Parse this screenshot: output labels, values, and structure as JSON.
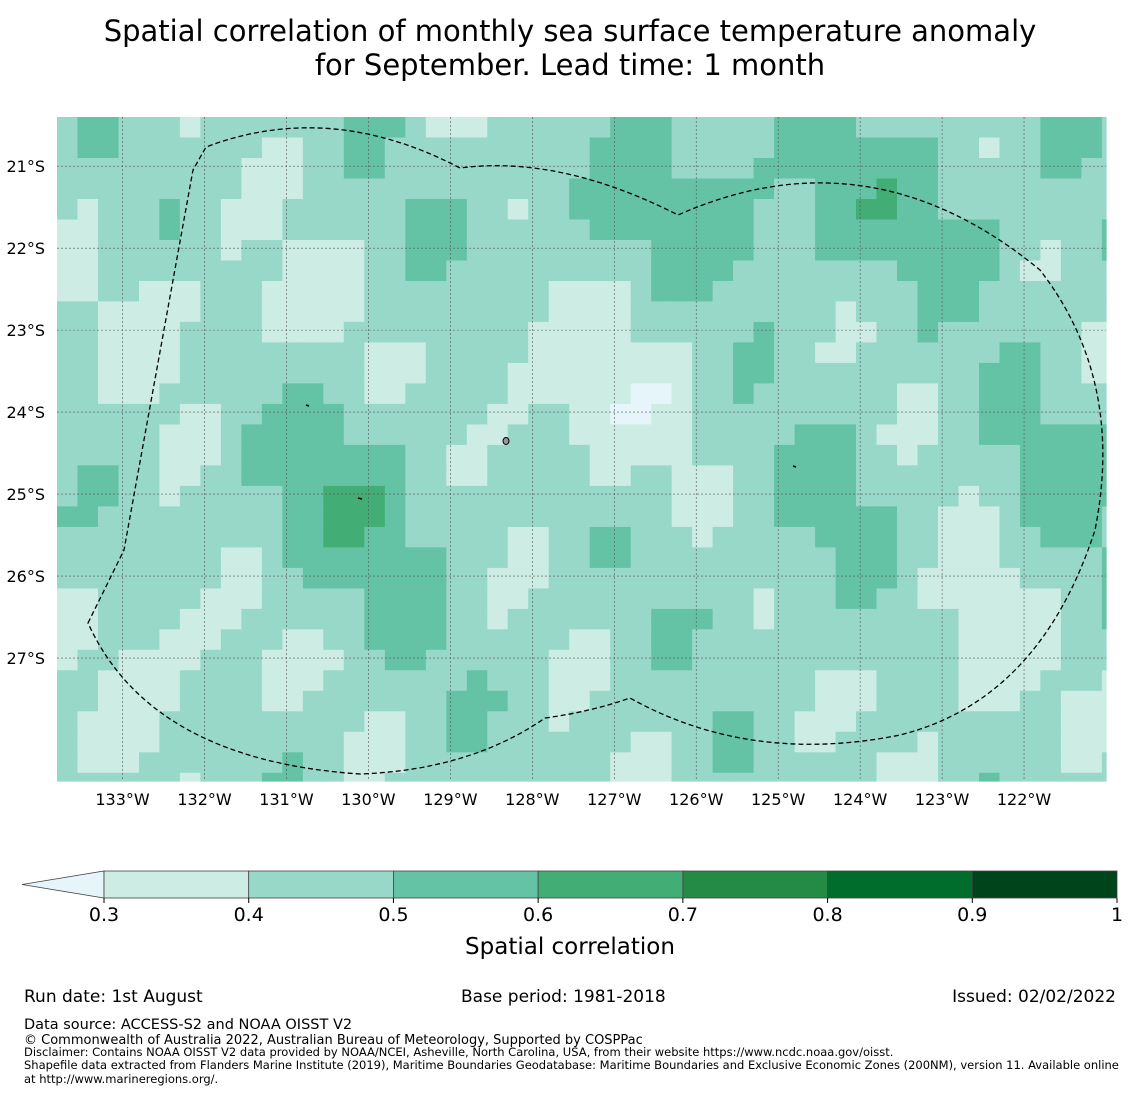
{
  "title": {
    "line1": "Spatial correlation of monthly sea surface temperature anomaly",
    "line2": "for September. Lead time: 1 month"
  },
  "map": {
    "lat_labels": [
      "21°S",
      "22°S",
      "23°S",
      "24°S",
      "25°S",
      "26°S",
      "27°S"
    ],
    "lon_labels": [
      "133°W",
      "132°W",
      "131°W",
      "130°W",
      "129°W",
      "128°W",
      "127°W",
      "126°W",
      "125°W",
      "124°W",
      "123°W",
      "122°W"
    ],
    "lat_range": [
      -28.5,
      -20.4
    ],
    "lon_range": [
      -133.8,
      -121.0
    ],
    "grid_resolution_deg": 0.25,
    "boundary_style": "dashed"
  },
  "colorbar": {
    "label": "Spatial correlation",
    "ticks": [
      "0.3",
      "0.4",
      "0.5",
      "0.6",
      "0.7",
      "0.8",
      "0.9",
      "1"
    ],
    "bins": [
      {
        "range": "0.3-0.4",
        "color": "#ccece4"
      },
      {
        "range": "0.4-0.5",
        "color": "#98d8c8"
      },
      {
        "range": "0.5-0.6",
        "color": "#64c2a5"
      },
      {
        "range": "0.6-0.7",
        "color": "#42ae76"
      },
      {
        "range": "0.7-0.8",
        "color": "#238b45"
      },
      {
        "range": "0.8-0.9",
        "color": "#006d2c"
      },
      {
        "range": "0.9-1",
        "color": "#00441b"
      }
    ],
    "under_color": "#e5f5f9"
  },
  "footer": {
    "run_date": "Run date: 1st August",
    "base_period": "Base period: 1981-2018",
    "issued": "Issued: 02/02/2022",
    "data_source": "Data source: ACCESS-S2 and NOAA OISST V2",
    "copyright": "© Commonwealth of Australia 2022, Australian Bureau of Meteorology, Supported by COSPPac",
    "disclaimer": "Disclaimer: Contains NOAA OISST V2 data provided by NOAA/NCEI, Asheville, North Carolina, USA, from their website https://www.ncdc.noaa.gov/oisst.",
    "shapefile": "Shapefile data extracted from Flanders Marine Institute (2019), Maritime Boundaries Geodatabase: Maritime Boundaries and Exclusive Economic Zones (200NM), version 11. Available online at http://www.marineregions.org/."
  }
}
